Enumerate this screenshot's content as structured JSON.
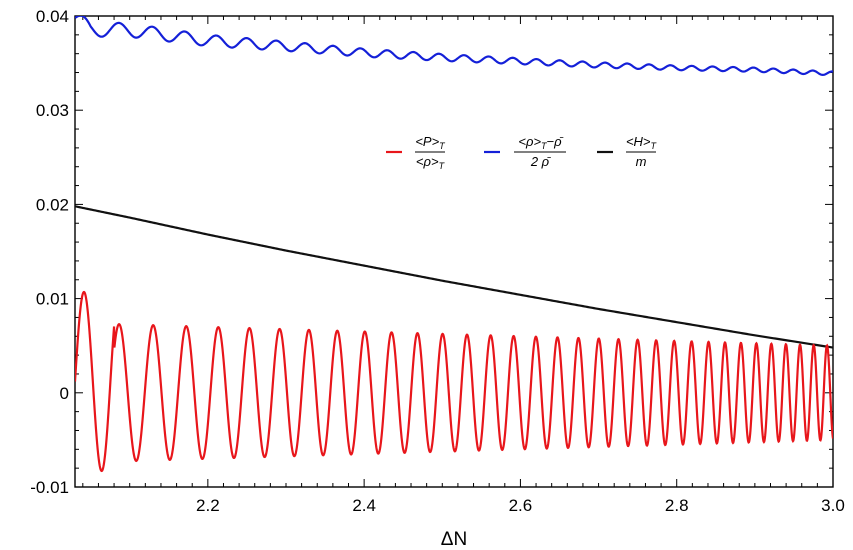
{
  "chart_data": {
    "type": "line",
    "xlabel": "ΔN",
    "ylabel": "",
    "xlim": [
      2.03,
      3.0
    ],
    "ylim": [
      -0.01,
      0.04
    ],
    "xticks": [
      2.2,
      2.4,
      2.6,
      2.8,
      3.0
    ],
    "xtick_labels": [
      "2.2",
      "2.4",
      "2.6",
      "2.8",
      "3.0"
    ],
    "yticks": [
      -0.01,
      0,
      0.01,
      0.02,
      0.03,
      0.04
    ],
    "ytick_labels": [
      "-0.01",
      "0",
      "0.01",
      "0.02",
      "0.03",
      "0.04"
    ],
    "grid": false,
    "legend_position": "top-center",
    "series": [
      {
        "name": "<P>_T / <ρ>_T",
        "color": "#e8161b",
        "description": "decaying-amplitude oscillation with increasing frequency",
        "x": [
          2.03,
          2.05,
          2.09,
          2.13,
          2.18,
          2.23,
          2.27,
          2.32,
          2.36,
          2.4,
          2.45,
          2.5,
          2.55,
          2.6,
          2.65,
          2.7,
          2.75,
          2.8,
          2.85,
          2.9,
          2.95,
          3.0
        ],
        "y": [
          0.0,
          0.011,
          -0.0075,
          0.0073,
          0.0072,
          0.007,
          0.0069,
          0.0067,
          0.0066,
          0.0064,
          0.0063,
          0.0062,
          0.006,
          0.0059,
          0.0058,
          0.0057,
          0.0056,
          0.0055,
          0.0053,
          0.0052,
          0.0051,
          -0.005
        ],
        "peak_amplitude": [
          0.011,
          0.0073,
          0.0072,
          0.007,
          0.0068,
          0.0066,
          0.0064,
          0.0062,
          0.006,
          0.0058,
          0.0056,
          0.0054,
          0.0052,
          0.005,
          0.0049
        ],
        "trough_amplitude": [
          -0.0075,
          -0.0072,
          -0.007,
          -0.0068,
          -0.0066,
          -0.0064,
          -0.0062,
          -0.006,
          -0.0058,
          -0.0056,
          -0.0055,
          -0.0053,
          -0.0052,
          -0.0051,
          -0.005
        ]
      },
      {
        "name": "(<ρ>_T − ρ̄) / (2 ρ̄)",
        "color": "#1420d8",
        "x": [
          2.03,
          2.05,
          2.1,
          2.2,
          2.3,
          2.4,
          2.5,
          2.6,
          2.7,
          2.8,
          2.9,
          3.0
        ],
        "y": [
          0.0398,
          0.0386,
          0.0385,
          0.0374,
          0.0368,
          0.0361,
          0.0356,
          0.0352,
          0.0348,
          0.0345,
          0.0343,
          0.0339
        ]
      },
      {
        "name": "<H>_T / m",
        "color": "#111111",
        "x": [
          2.03,
          2.1,
          2.2,
          2.3,
          2.4,
          2.5,
          2.6,
          2.7,
          2.8,
          2.9,
          3.0
        ],
        "y": [
          0.0198,
          0.0186,
          0.0168,
          0.0151,
          0.0135,
          0.0119,
          0.0104,
          0.0089,
          0.0075,
          0.0061,
          0.0048
        ]
      }
    ],
    "legend": {
      "entries": [
        {
          "numerator": "<P>",
          "num_sub": "T",
          "denominator": "<ρ>",
          "den_sub": "T",
          "color": "#e8161b"
        },
        {
          "numerator": "<ρ>",
          "num_sub": "T",
          "num_tail": "−ρ̄",
          "denominator": "2 ρ̄",
          "den_sub": "",
          "color": "#1420d8"
        },
        {
          "numerator": "<H>",
          "num_sub": "T",
          "denominator": "m",
          "den_sub": "",
          "color": "#111111"
        }
      ]
    }
  }
}
